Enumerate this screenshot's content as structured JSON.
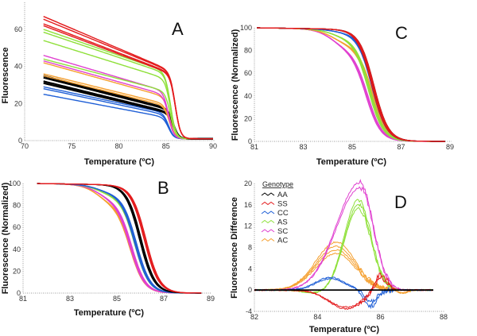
{
  "colors": {
    "AA": "#000000",
    "SS": "#e31a1c",
    "CC": "#1f5fd6",
    "AS": "#8fe03a",
    "SC": "#e040d0",
    "AC": "#f5a030"
  },
  "chart_data": [
    {
      "panel": "A",
      "type": "line",
      "title": "A",
      "xlabel": "Temperature (ºC)",
      "ylabel": "Fluorescence",
      "xlim": [
        70,
        90
      ],
      "ylim": [
        0,
        70
      ],
      "xticks": [
        "70",
        "75",
        "80",
        "85",
        "90"
      ],
      "yticks": [
        "0",
        "20",
        "40",
        "60"
      ],
      "series": [
        {
          "name": "SS",
          "start_values": [
            66,
            64.5,
            62,
            61
          ],
          "value_at_84": [
            40,
            39.5,
            38.5,
            38
          ],
          "melt_temp": 86.0
        },
        {
          "name": "AS",
          "start_values": [
            59,
            57.5,
            53,
            43
          ],
          "value_at_84": [
            38,
            37,
            34,
            27
          ],
          "melt_temp": 85.5
        },
        {
          "name": "SC",
          "start_values": [
            45,
            42
          ],
          "value_at_84": [
            27,
            25
          ],
          "melt_temp": 85.3
        },
        {
          "name": "AC",
          "start_values": [
            41,
            35,
            34
          ],
          "value_at_84": [
            24,
            20,
            19
          ],
          "melt_temp": 85.4
        },
        {
          "name": "AA",
          "start_values": [
            34,
            33,
            31,
            30
          ],
          "value_at_84": [
            18,
            17.5,
            16,
            15.5
          ],
          "melt_temp": 85.8
        },
        {
          "name": "CC",
          "start_values": [
            28,
            27,
            24
          ],
          "value_at_84": [
            15,
            14,
            12.5
          ],
          "melt_temp": 85.3
        }
      ]
    },
    {
      "panel": "B",
      "type": "line",
      "title": "B",
      "xlabel": "Temperature (ºC)",
      "ylabel": "Fluorescence (Normalized)",
      "xlim": [
        81,
        89
      ],
      "ylim": [
        0,
        100
      ],
      "xticks": [
        "81",
        "83",
        "85",
        "87",
        "89"
      ],
      "yticks": [
        "0",
        "20",
        "40",
        "60",
        "80",
        "100"
      ],
      "series": [
        {
          "name": "SS",
          "midpoint": 86.2,
          "shoulder": 0
        },
        {
          "name": "AA",
          "midpoint": 86.0,
          "shoulder": 0
        },
        {
          "name": "CC",
          "midpoint": 85.8,
          "shoulder": 8
        },
        {
          "name": "AS",
          "midpoint": 85.8,
          "shoulder": 10
        },
        {
          "name": "SC",
          "midpoint": 85.6,
          "shoulder": 14
        },
        {
          "name": "AC",
          "midpoint": 85.6,
          "shoulder": 18
        }
      ]
    },
    {
      "panel": "C",
      "type": "line",
      "title": "C",
      "xlabel": "Temperature (ºC)",
      "ylabel": "Fluorescence (Normalized)",
      "xlim": [
        81,
        89
      ],
      "ylim": [
        0,
        100
      ],
      "xticks": [
        "81",
        "83",
        "85",
        "87",
        "89"
      ],
      "yticks": [
        "0",
        "20",
        "40",
        "60",
        "80",
        "100"
      ],
      "series": [
        {
          "name": "SS",
          "midpoint": 85.85,
          "shoulder": 0
        },
        {
          "name": "AA",
          "midpoint": 85.85,
          "shoulder": 0
        },
        {
          "name": "CC",
          "midpoint": 85.85,
          "shoulder": 3
        },
        {
          "name": "AS",
          "midpoint": 85.7,
          "shoulder": 8
        },
        {
          "name": "AC",
          "midpoint": 85.8,
          "shoulder": 14
        },
        {
          "name": "SC",
          "midpoint": 85.6,
          "shoulder": 18
        }
      ]
    },
    {
      "panel": "D",
      "type": "line",
      "title": "D",
      "xlabel": "Temperature (ºC)",
      "ylabel": "Fluorescence Difference",
      "xlim": [
        82,
        88
      ],
      "ylim": [
        -4,
        20
      ],
      "xticks": [
        "82",
        "84",
        "86",
        "88"
      ],
      "yticks": [
        "-4",
        "0",
        "4",
        "8",
        "12",
        "16",
        "20"
      ],
      "legend": {
        "title": "Genotype",
        "entries": [
          "AA",
          "SS",
          "CC",
          "AS",
          "SC",
          "AC"
        ],
        "placement": "top-left"
      },
      "series": [
        {
          "name": "AA",
          "peak_temp": 85.5,
          "peak_values": [
            0,
            0
          ]
        },
        {
          "name": "SS",
          "peak_temp": 84.9,
          "peak_values": [
            -3.5,
            -3.2
          ],
          "secondary_peak": {
            "temp": 86.0,
            "values": [
              3.4,
              2.6
            ]
          }
        },
        {
          "name": "CC",
          "peak_temp": 84.4,
          "peak_values": [
            2.4,
            2.1
          ],
          "secondary_peak": {
            "temp": 85.7,
            "values": [
              -3.0,
              -2.2
            ]
          }
        },
        {
          "name": "AS",
          "peak_temp": 85.3,
          "peak_values": [
            17,
            16,
            15.3
          ]
        },
        {
          "name": "SC",
          "peak_temp": 85.35,
          "peak_values": [
            20.2,
            19.2
          ]
        },
        {
          "name": "AC",
          "peak_temp": 84.6,
          "peak_values": [
            9,
            8.2,
            7.5,
            6.9
          ]
        }
      ]
    }
  ]
}
